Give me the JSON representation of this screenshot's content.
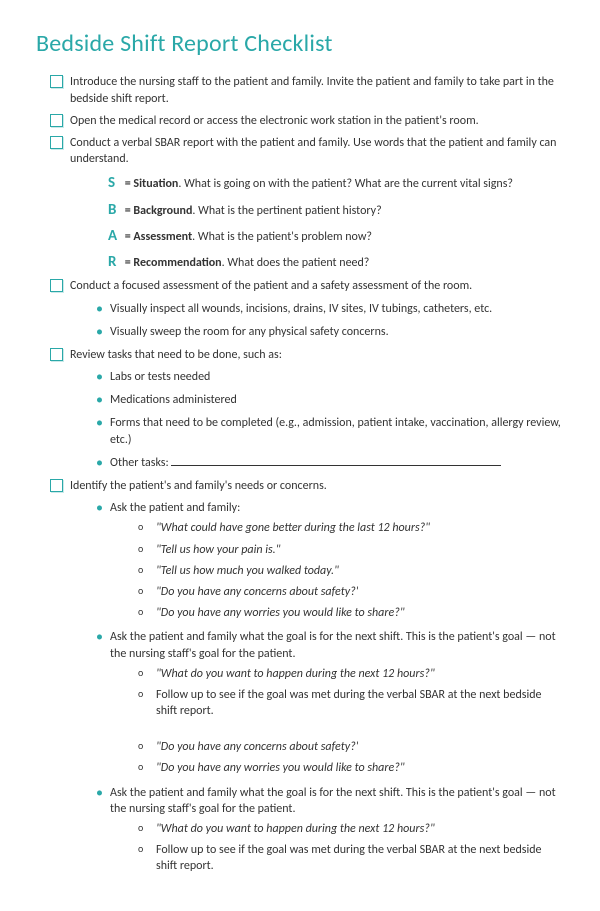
{
  "title": "Bedside Shift Report Checklist",
  "accent_color": "#2aa8a8",
  "items": {
    "i1": "Introduce the nursing staff to the patient and family. Invite the patient and family to take part in the bedside shift report.",
    "i2": "Open the medical record or access the electronic work station in the patient's room.",
    "i3": "Conduct a verbal SBAR report with the patient and family. Use words that the patient and family can understand.",
    "i4": "Conduct a focused assessment of the patient and a safety assessment of the room.",
    "i5": "Review tasks that need to be done, such as:",
    "i6": "Identify the patient's and family's needs or concerns."
  },
  "sbar": {
    "s": {
      "letter": "S",
      "label": "= Situation",
      "desc": ". What is going on with the patient? What are the current vital signs?"
    },
    "b": {
      "letter": "B",
      "label": "= Background",
      "desc": ".  What is the pertinent patient history?"
    },
    "a": {
      "letter": "A",
      "label": "= Assessment",
      "desc": ". What is the patient's problem now?"
    },
    "r": {
      "letter": "R",
      "label": "= Recommendation",
      "desc": ". What does the patient need?"
    }
  },
  "assess": {
    "b1": "Visually inspect all wounds, incisions, drains, IV sites, IV tubings, catheters, etc.",
    "b2": "Visually sweep the room for any physical safety concerns."
  },
  "tasks": {
    "b1": "Labs or tests needed",
    "b2": "Medications administered",
    "b3": "Forms that need to be completed (e.g., admission, patient intake, vaccination, allergy review, etc.)",
    "b4": "Other tasks:"
  },
  "needs": {
    "ask1": "Ask the patient and family:",
    "q1": "\"What could have gone better during the last 12 hours?\"",
    "q2": "\"Tell us how your pain is.\"",
    "q3": "\"Tell us how much you walked today.\"",
    "q4": "\"Do you have any concerns about safety?'",
    "q5": "\"Do you have any worries you would like to share?\"",
    "goal": "Ask the patient and family what the goal is for the next shift. This is the patient's goal — not the nursing staff's goal for the patient.",
    "g1": "\"What do you want to happen during the next 12 hours?\"",
    "g2": "Follow up to see if the goal was met during the verbal SBAR at the next bedside shift report."
  }
}
